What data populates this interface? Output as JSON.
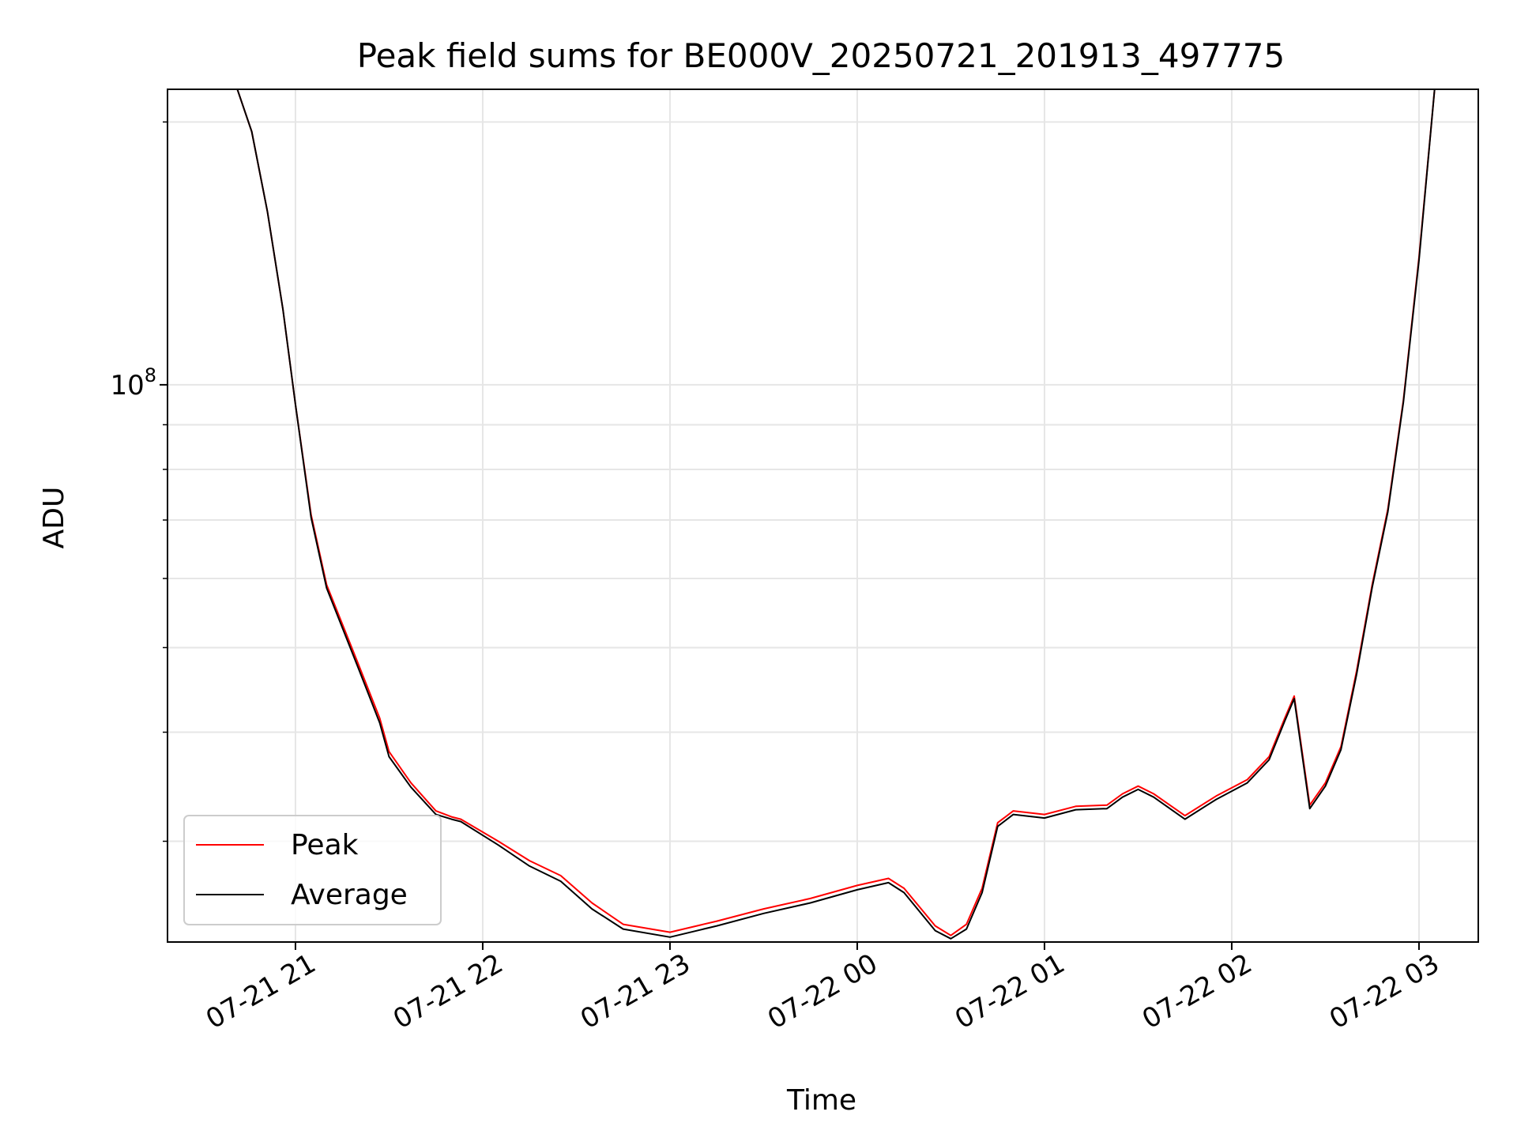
{
  "chart_data": {
    "type": "line",
    "title": "Peak field sums for BE000V_20250721_201913_497775",
    "xlabel": "Time",
    "ylabel": "ADU",
    "y_scale": "log",
    "grid": true,
    "legend_position": "lower-left",
    "xlim": [
      "2025-07-21 20:19",
      "2025-07-22 03:19"
    ],
    "ylim": [
      23000000,
      218000000
    ],
    "x_ticks": [
      "07-21 21",
      "07-21 22",
      "07-21 23",
      "07-22 00",
      "07-22 01",
      "07-22 02",
      "07-22 03"
    ],
    "y_tick_labels": [
      {
        "value": 100000000,
        "base": "10",
        "exponent": "8"
      }
    ],
    "x_dates": [
      "2025-07-21 20:41",
      "2025-07-21 20:46",
      "2025-07-21 20:51",
      "2025-07-21 20:56",
      "2025-07-21 21:00",
      "2025-07-21 21:05",
      "2025-07-21 21:10",
      "2025-07-21 21:20",
      "2025-07-21 21:27",
      "2025-07-21 21:30",
      "2025-07-21 21:37",
      "2025-07-21 21:45",
      "2025-07-21 21:50",
      "2025-07-21 21:53",
      "2025-07-21 22:05",
      "2025-07-21 22:15",
      "2025-07-21 22:25",
      "2025-07-21 22:35",
      "2025-07-21 22:45",
      "2025-07-21 23:00",
      "2025-07-21 23:15",
      "2025-07-21 23:30",
      "2025-07-21 23:45",
      "2025-07-22 00:00",
      "2025-07-22 00:10",
      "2025-07-22 00:15",
      "2025-07-22 00:25",
      "2025-07-22 00:30",
      "2025-07-22 00:35",
      "2025-07-22 00:40",
      "2025-07-22 00:45",
      "2025-07-22 00:50",
      "2025-07-22 01:00",
      "2025-07-22 01:10",
      "2025-07-22 01:20",
      "2025-07-22 01:25",
      "2025-07-22 01:30",
      "2025-07-22 01:35",
      "2025-07-22 01:45",
      "2025-07-22 01:55",
      "2025-07-22 02:05",
      "2025-07-22 02:12",
      "2025-07-22 02:17",
      "2025-07-22 02:20",
      "2025-07-22 02:25",
      "2025-07-22 02:30",
      "2025-07-22 02:35",
      "2025-07-22 02:40",
      "2025-07-22 02:45",
      "2025-07-22 02:50",
      "2025-07-22 02:55",
      "2025-07-22 03:00",
      "2025-07-22 03:05"
    ],
    "series": [
      {
        "name": "Peak",
        "color": "#ff0000",
        "values": [
          220000000,
          195000000,
          158000000,
          122000000,
          95000000,
          71000000,
          59000000,
          48000000,
          41500000,
          38000000,
          35000000,
          32500000,
          32000000,
          31800000,
          30000000,
          28500000,
          27400000,
          25500000,
          24100000,
          23600000,
          24300000,
          25100000,
          25800000,
          26700000,
          27200000,
          26500000,
          24000000,
          23400000,
          24100000,
          26500000,
          31500000,
          32500000,
          32200000,
          32900000,
          33000000,
          34000000,
          34700000,
          34000000,
          32100000,
          33800000,
          35300000,
          37500000,
          41500000,
          44000000,
          33000000,
          35000000,
          38500000,
          47000000,
          59000000,
          72000000,
          96000000,
          140000000,
          218000000
        ]
      },
      {
        "name": "Average",
        "color": "#000000",
        "values": [
          220000000,
          195000000,
          158000000,
          122000000,
          95000000,
          70500000,
          58500000,
          47500000,
          41000000,
          37500000,
          34600000,
          32200000,
          31800000,
          31600000,
          29700000,
          28100000,
          27000000,
          25100000,
          23800000,
          23300000,
          24000000,
          24800000,
          25500000,
          26400000,
          26900000,
          26200000,
          23700000,
          23200000,
          23800000,
          26200000,
          31200000,
          32200000,
          31900000,
          32600000,
          32700000,
          33700000,
          34400000,
          33700000,
          31800000,
          33500000,
          35000000,
          37200000,
          41200000,
          43700000,
          32700000,
          34700000,
          38200000,
          46600000,
          58600000,
          71500000,
          95500000,
          139000000,
          218000000
        ]
      }
    ]
  }
}
